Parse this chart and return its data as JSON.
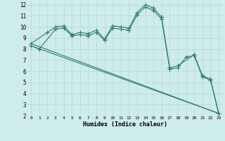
{
  "xlabel": "Humidex (Indice chaleur)",
  "bg_color": "#ceecea",
  "grid_color": "#b8d8d5",
  "line_color": "#2e7d6e",
  "xlim": [
    -0.5,
    23.5
  ],
  "ylim": [
    2,
    12.3
  ],
  "xticks": [
    0,
    1,
    2,
    3,
    4,
    5,
    6,
    7,
    8,
    9,
    10,
    11,
    12,
    13,
    14,
    15,
    16,
    17,
    18,
    19,
    20,
    21,
    22,
    23
  ],
  "yticks": [
    2,
    3,
    4,
    5,
    6,
    7,
    8,
    9,
    10,
    11,
    12
  ],
  "line1": {
    "x": [
      0,
      23
    ],
    "y": [
      8.5,
      2.2
    ],
    "markers": false
  },
  "line2": {
    "x": [
      0,
      23
    ],
    "y": [
      8.3,
      2.2
    ],
    "markers": false
  },
  "line3": {
    "x": [
      0,
      2,
      3,
      4,
      5,
      6,
      7,
      8,
      9,
      10,
      11,
      12,
      13,
      14,
      15,
      16,
      17,
      18,
      20,
      21,
      22,
      23
    ],
    "y": [
      8.5,
      9.5,
      10.0,
      10.1,
      9.3,
      9.5,
      9.4,
      9.7,
      8.9,
      10.1,
      10.0,
      9.9,
      11.3,
      12.0,
      11.7,
      10.9,
      6.3,
      6.5,
      7.5,
      5.6,
      5.3,
      2.2
    ],
    "markers": true
  },
  "line4": {
    "x": [
      0,
      1,
      3,
      4,
      5,
      6,
      7,
      8,
      9,
      10,
      11,
      12,
      13,
      14,
      15,
      16,
      17,
      18,
      19,
      20,
      21,
      22,
      23
    ],
    "y": [
      8.3,
      8.0,
      9.8,
      9.9,
      9.2,
      9.3,
      9.2,
      9.5,
      8.8,
      9.9,
      9.8,
      9.7,
      11.1,
      11.8,
      11.5,
      10.7,
      6.2,
      6.3,
      7.3,
      7.4,
      5.5,
      5.2,
      2.2
    ],
    "markers": true
  }
}
